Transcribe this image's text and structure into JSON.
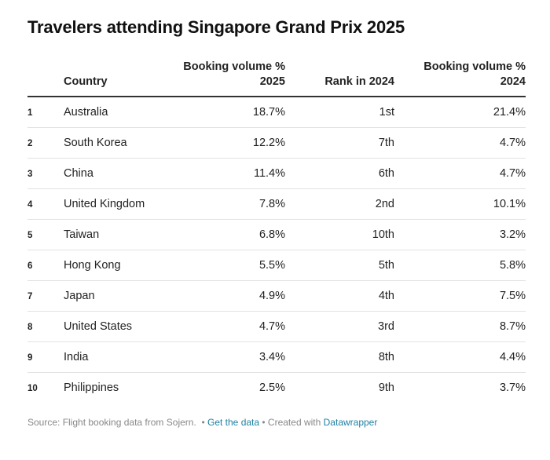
{
  "chart_data": {
    "type": "table",
    "title": "Travelers attending Singapore Grand Prix 2025",
    "columns": [
      "",
      "Country",
      "Booking volume % 2025",
      "Rank in 2024",
      "Booking volume % 2024"
    ],
    "header": {
      "country": "Country",
      "vol25_line1": "Booking volume %",
      "vol25_line2": "2025",
      "rank": "Rank in 2024",
      "vol24_line1": "Booking volume %",
      "vol24_line2": "2024"
    },
    "rows": [
      {
        "idx": "1",
        "country": "Australia",
        "vol25": "18.7%",
        "rank": "1st",
        "vol24": "21.4%"
      },
      {
        "idx": "2",
        "country": "South Korea",
        "vol25": "12.2%",
        "rank": "7th",
        "vol24": "4.7%"
      },
      {
        "idx": "3",
        "country": "China",
        "vol25": "11.4%",
        "rank": "6th",
        "vol24": "4.7%"
      },
      {
        "idx": "4",
        "country": "United Kingdom",
        "vol25": "7.8%",
        "rank": "2nd",
        "vol24": "10.1%"
      },
      {
        "idx": "5",
        "country": "Taiwan",
        "vol25": "6.8%",
        "rank": "10th",
        "vol24": "3.2%"
      },
      {
        "idx": "6",
        "country": "Hong Kong",
        "vol25": "5.5%",
        "rank": "5th",
        "vol24": "5.8%"
      },
      {
        "idx": "7",
        "country": "Japan",
        "vol25": "4.9%",
        "rank": "4th",
        "vol24": "7.5%"
      },
      {
        "idx": "8",
        "country": "United States",
        "vol25": "4.7%",
        "rank": "3rd",
        "vol24": "8.7%"
      },
      {
        "idx": "9",
        "country": "India",
        "vol25": "3.4%",
        "rank": "8th",
        "vol24": "4.4%"
      },
      {
        "idx": "10",
        "country": "Philippines",
        "vol25": "2.5%",
        "rank": "9th",
        "vol24": "3.7%"
      }
    ]
  },
  "footer": {
    "source": "Source: Flight booking data from Sojern.",
    "bullet": "•",
    "get_data": "Get the data",
    "created_with": "• Created with",
    "tool": "Datawrapper"
  },
  "colors": {
    "link": "#1d81a2",
    "muted": "#888888",
    "rule": "#333333",
    "row_divider": "#e2e2e2"
  }
}
